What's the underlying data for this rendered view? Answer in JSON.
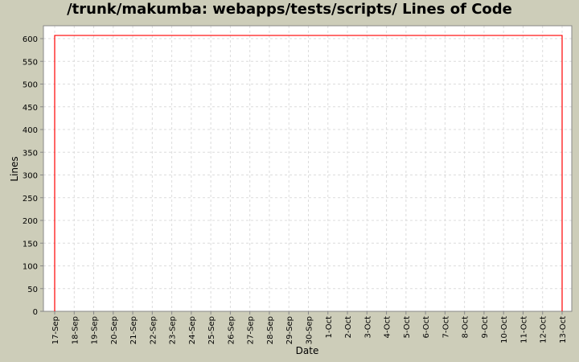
{
  "chart_data": {
    "type": "line",
    "title": "/trunk/makumba: webapps/tests/scripts/ Lines of Code",
    "xlabel": "Date",
    "ylabel": "Lines",
    "ylim": [
      0,
      620
    ],
    "yticks": [
      0,
      50,
      100,
      150,
      200,
      250,
      300,
      350,
      400,
      450,
      500,
      550,
      600
    ],
    "categories": [
      "17-Sep",
      "18-Sep",
      "19-Sep",
      "20-Sep",
      "21-Sep",
      "22-Sep",
      "23-Sep",
      "24-Sep",
      "25-Sep",
      "26-Sep",
      "27-Sep",
      "28-Sep",
      "29-Sep",
      "30-Sep",
      "1-Oct",
      "2-Oct",
      "3-Oct",
      "4-Oct",
      "5-Oct",
      "6-Oct",
      "7-Oct",
      "8-Oct",
      "9-Oct",
      "10-Oct",
      "11-Oct",
      "12-Oct",
      "13-Oct"
    ],
    "grid": true,
    "series": [
      {
        "color": "#ff0000",
        "points": [
          [
            "17-Sep",
            0
          ],
          [
            "17-Sep",
            607
          ],
          [
            "13-Oct",
            607
          ],
          [
            "13-Oct",
            0
          ]
        ]
      }
    ]
  }
}
